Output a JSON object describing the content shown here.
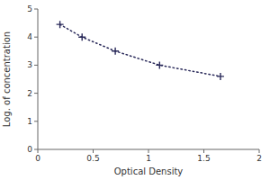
{
  "chart_data": {
    "type": "line",
    "x": [
      0.2,
      0.4,
      0.7,
      1.1,
      1.65
    ],
    "values": [
      4.45,
      4.0,
      3.5,
      3.0,
      2.6
    ],
    "xlabel": "Optical Density",
    "ylabel": "Log. of concentration",
    "xlim": [
      0,
      2
    ],
    "ylim": [
      0,
      5
    ],
    "xticks": [
      0,
      0.5,
      1,
      1.5,
      2
    ],
    "yticks": [
      0,
      1,
      2,
      3,
      4,
      5
    ],
    "color": "#2a2a5a",
    "line_style": "dotted",
    "marker": "plus",
    "grid": false
  }
}
